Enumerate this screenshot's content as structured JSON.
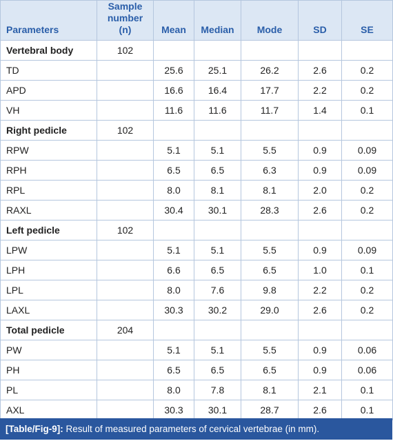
{
  "table": {
    "header": [
      "Parameters",
      "Sample number (n)",
      "Mean",
      "Median",
      "Mode",
      "SD",
      "SE"
    ],
    "rows": [
      {
        "group": "Vertebral body",
        "n": "102"
      },
      {
        "label": "TD",
        "values": [
          "25.6",
          "25.1",
          "26.2",
          "2.6",
          "0.2"
        ]
      },
      {
        "label": "APD",
        "values": [
          "16.6",
          "16.4",
          "17.7",
          "2.2",
          "0.2"
        ]
      },
      {
        "label": "VH",
        "values": [
          "11.6",
          "11.6",
          "11.7",
          "1.4",
          "0.1"
        ]
      },
      {
        "group": "Right pedicle",
        "n": "102"
      },
      {
        "label": "RPW",
        "values": [
          "5.1",
          "5.1",
          "5.5",
          "0.9",
          "0.09"
        ]
      },
      {
        "label": "RPH",
        "values": [
          "6.5",
          "6.5",
          "6.3",
          "0.9",
          "0.09"
        ]
      },
      {
        "label": "RPL",
        "values": [
          "8.0",
          "8.1",
          "8.1",
          "2.0",
          "0.2"
        ]
      },
      {
        "label": "RAXL",
        "values": [
          "30.4",
          "30.1",
          "28.3",
          "2.6",
          "0.2"
        ]
      },
      {
        "group": "Left pedicle",
        "n": "102"
      },
      {
        "label": "LPW",
        "values": [
          "5.1",
          "5.1",
          "5.5",
          "0.9",
          "0.09"
        ]
      },
      {
        "label": "LPH",
        "values": [
          "6.6",
          "6.5",
          "6.5",
          "1.0",
          "0.1"
        ]
      },
      {
        "label": "LPL",
        "values": [
          "8.0",
          "7.6",
          "9.8",
          "2.2",
          "0.2"
        ]
      },
      {
        "label": "LAXL",
        "values": [
          "30.3",
          "30.2",
          "29.0",
          "2.6",
          "0.2"
        ]
      },
      {
        "group": "Total pedicle",
        "n": "204"
      },
      {
        "label": "PW",
        "values": [
          "5.1",
          "5.1",
          "5.5",
          "0.9",
          "0.06"
        ]
      },
      {
        "label": "PH",
        "values": [
          "6.5",
          "6.5",
          "6.5",
          "0.9",
          "0.06"
        ]
      },
      {
        "label": "PL",
        "values": [
          "8.0",
          "7.8",
          "8.1",
          "2.1",
          "0.1"
        ]
      },
      {
        "label": "AXL",
        "values": [
          "30.3",
          "30.1",
          "28.7",
          "2.6",
          "0.1"
        ]
      }
    ]
  },
  "caption": {
    "label": "[Table/Fig-9]:",
    "text": "Result of measured parameters of cervical vertebrae (in mm)."
  }
}
